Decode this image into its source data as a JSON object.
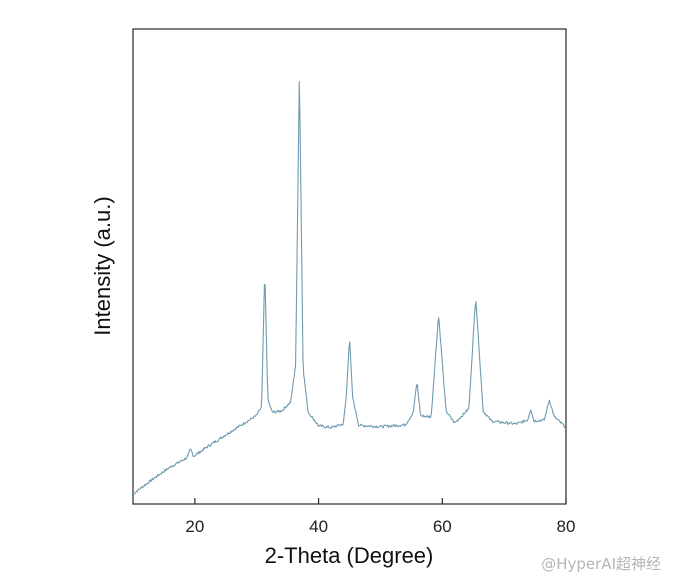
{
  "chart_data": {
    "type": "line",
    "xlabel": "2-Theta (Degree)",
    "ylabel": "Intensity (a.u.)",
    "xlim": [
      10,
      80
    ],
    "ylim": [
      0,
      100
    ],
    "xticks": [
      20,
      40,
      60,
      80
    ],
    "y_tick_labels": false,
    "grid": false,
    "legend": "none",
    "line_color": "#6e9bb0",
    "series": [
      {
        "x": [
          10,
          12,
          14,
          16,
          18,
          18.8,
          19.3,
          19.8,
          22,
          25,
          28,
          30,
          30.8,
          31.3,
          31.8,
          32.5,
          34,
          35.5,
          36.3,
          36.9,
          37.5,
          38.3,
          40,
          42,
          44,
          44.5,
          45,
          45.5,
          46.5,
          50,
          54,
          55.3,
          55.9,
          56.5,
          58.2,
          59.4,
          60.6,
          62,
          64.3,
          65.4,
          66.6,
          68,
          72,
          73.8,
          74.3,
          74.8,
          76.5,
          77.3,
          78.1,
          80
        ],
        "y": [
          0,
          2.1,
          4.1,
          6,
          7.5,
          8.2,
          10,
          8.4,
          10.5,
          13.2,
          15.8,
          17.5,
          19.5,
          50,
          21,
          18.2,
          18.5,
          20.5,
          29,
          94,
          28,
          18.3,
          15.2,
          14.8,
          15.6,
          22,
          35,
          21.5,
          15.3,
          15,
          15.4,
          18,
          25,
          17.4,
          17.2,
          40,
          18.5,
          15.8,
          19,
          44,
          18.5,
          16.2,
          15.6,
          16.5,
          19,
          16.3,
          16.5,
          21,
          17.2,
          14.8
        ]
      }
    ]
  },
  "watermark": {
    "text": "@HyperAI超神经"
  }
}
